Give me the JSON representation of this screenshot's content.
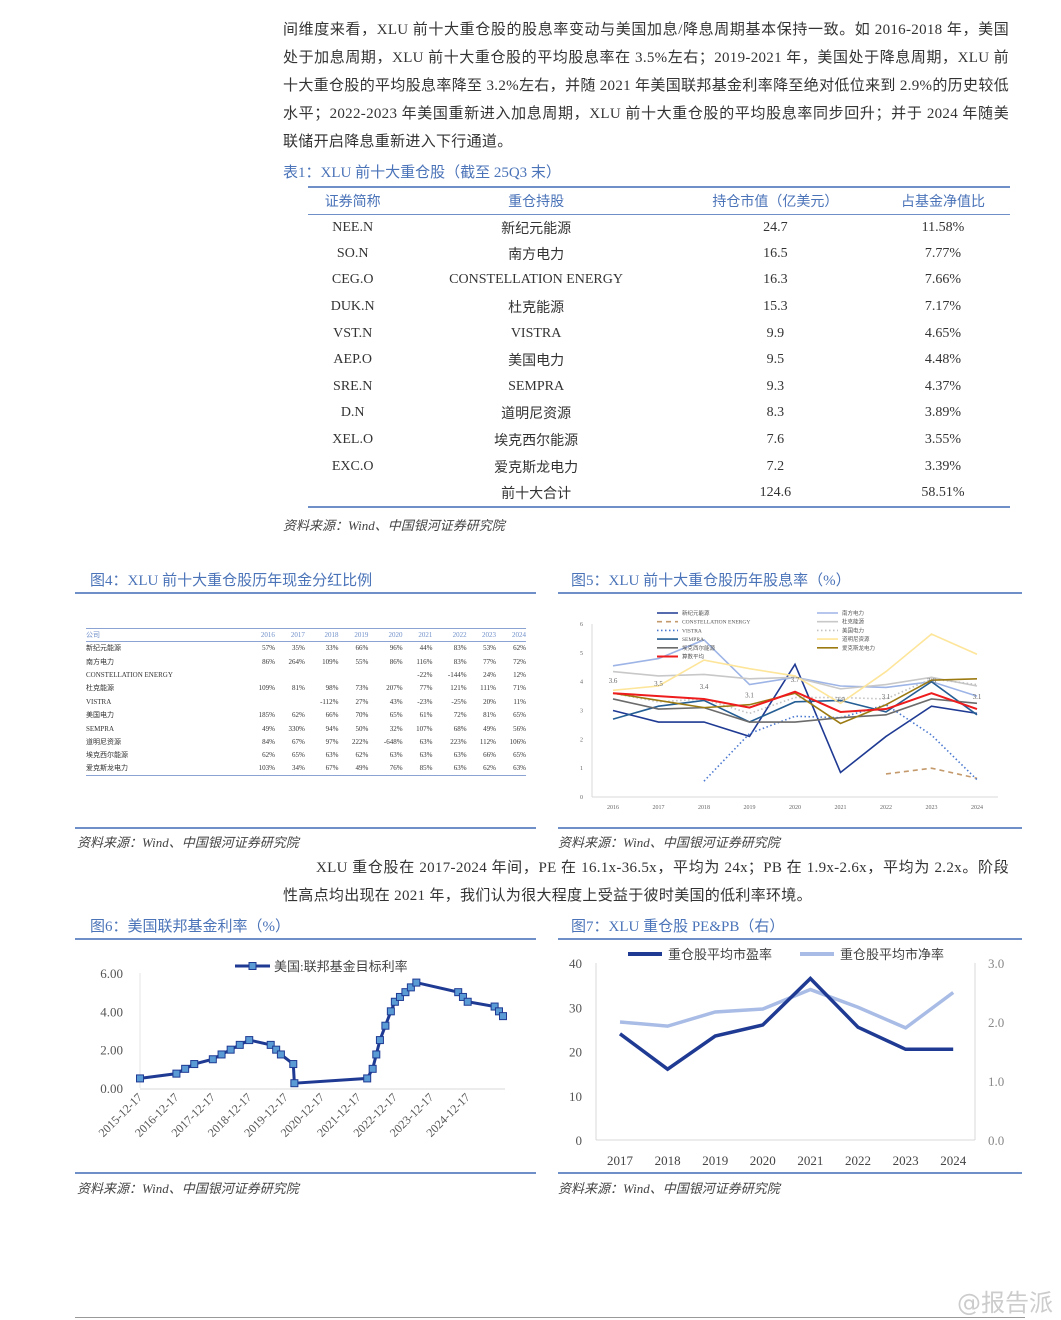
{
  "para1": "间维度来看，XLU 前十大重仓股的股息率变动与美国加息/降息周期基本保持一致。如 2016-2018 年，美国处于加息周期，XLU 前十大重仓股的平均股息率在 3.5%左右；2019-2021 年，美国处于降息周期，XLU 前十大重仓股的平均股息率降至 3.2%左右，并随 2021 年美国联邦基金利率降至绝对低位来到 2.9%的历史较低水平；2022-2023 年美国重新进入加息周期，XLU 前十大重仓股的平均股息率同步回升；并于 2024 年随美联储开启降息重新进入下行通道。",
  "table1": {
    "caption": "表1：XLU 前十大重仓股（截至 25Q3 末）",
    "headers": [
      "证券简称",
      "重仓持股",
      "持仓市值（亿美元）",
      "占基金净值比"
    ],
    "rows": [
      [
        "NEE.N",
        "新纪元能源",
        "24.7",
        "11.58%"
      ],
      [
        "SO.N",
        "南方电力",
        "16.5",
        "7.77%"
      ],
      [
        "CEG.O",
        "CONSTELLATION ENERGY",
        "16.3",
        "7.66%"
      ],
      [
        "DUK.N",
        "杜克能源",
        "15.3",
        "7.17%"
      ],
      [
        "VST.N",
        "VISTRA",
        "9.9",
        "4.65%"
      ],
      [
        "AEP.O",
        "美国电力",
        "9.5",
        "4.48%"
      ],
      [
        "SRE.N",
        "SEMPRA",
        "9.3",
        "4.37%"
      ],
      [
        "D.N",
        "道明尼资源",
        "8.3",
        "3.89%"
      ],
      [
        "XEL.O",
        "埃克西尔能源",
        "7.6",
        "3.55%"
      ],
      [
        "EXC.O",
        "爱克斯龙电力",
        "7.2",
        "3.39%"
      ],
      [
        "",
        "前十大合计",
        "124.6",
        "58.51%"
      ]
    ],
    "source": "资料来源：Wind、中国银河证券研究院"
  },
  "fig4": {
    "title": "图4：XLU 前十大重仓股历年现金分红比例",
    "headers": [
      "公司",
      "2016",
      "2017",
      "2018",
      "2019",
      "2020",
      "2021",
      "2022",
      "2023",
      "2024"
    ],
    "rows": [
      [
        "新纪元能源",
        "57%",
        "35%",
        "33%",
        "66%",
        "96%",
        "44%",
        "83%",
        "53%",
        "62%"
      ],
      [
        "南方电力",
        "86%",
        "264%",
        "109%",
        "55%",
        "86%",
        "116%",
        "83%",
        "77%",
        "72%"
      ],
      [
        "CONSTELLATION ENERGY",
        "",
        "",
        "",
        "",
        "",
        "-22%",
        "-144%",
        "24%",
        "12%"
      ],
      [
        "杜克能源",
        "109%",
        "81%",
        "98%",
        "73%",
        "207%",
        "77%",
        "121%",
        "111%",
        "71%"
      ],
      [
        "VISTRA",
        "",
        "",
        "-112%",
        "27%",
        "43%",
        "-23%",
        "-25%",
        "20%",
        "11%"
      ],
      [
        "美国电力",
        "185%",
        "62%",
        "66%",
        "70%",
        "65%",
        "61%",
        "72%",
        "81%",
        "65%"
      ],
      [
        "SEMPRA",
        "49%",
        "330%",
        "94%",
        "50%",
        "32%",
        "107%",
        "68%",
        "49%",
        "56%"
      ],
      [
        "道明尼资源",
        "84%",
        "67%",
        "97%",
        "222%",
        "-648%",
        "63%",
        "223%",
        "112%",
        "106%"
      ],
      [
        "埃克西尔能源",
        "62%",
        "65%",
        "63%",
        "62%",
        "63%",
        "63%",
        "63%",
        "66%",
        "65%"
      ],
      [
        "爱克斯龙电力",
        "103%",
        "34%",
        "67%",
        "49%",
        "76%",
        "85%",
        "63%",
        "62%",
        "63%"
      ]
    ],
    "source": "资料来源：Wind、中国银河证券研究院"
  },
  "fig5": {
    "title": "图5：XLU 前十大重仓股历年股息率（%）",
    "source": "资料来源：Wind、中国银河证券研究院"
  },
  "para2": "XLU 重仓股在 2017-2024 年间，PE 在 16.1x-36.5x，平均为 24x；PB 在 1.9x-2.6x，平均为 2.2x。阶段性高点均出现在 2021 年，我们认为很大程度上受益于彼时美国的低利率环境。",
  "fig6": {
    "title": "图6：美国联邦基金利率（%）",
    "source": "资料来源：Wind、中国银河证券研究院"
  },
  "fig7": {
    "title": "图7：XLU 重仓股 PE&PB（右）",
    "source": "资料来源：Wind、中国银河证券研究院"
  },
  "watermark": "@报告派",
  "chart_data": [
    {
      "type": "line",
      "title": "图5：XLU 前十大重仓股历年股息率（%）",
      "x": [
        "2016",
        "2017",
        "2018",
        "2019",
        "2020",
        "2021",
        "2022",
        "2023",
        "2024"
      ],
      "ylim": [
        0,
        6
      ],
      "yticks": [
        "0",
        "1",
        "2",
        "3",
        "4",
        "5",
        "6"
      ],
      "series": [
        {
          "name": "新纪元能源",
          "color": "#1f3a93",
          "dash": "",
          "values": [
            3.0,
            2.6,
            2.6,
            2.1,
            4.6,
            0.85,
            2.1,
            3.15,
            2.9
          ]
        },
        {
          "name": "南方电力",
          "color": "#9db4e6",
          "dash": "",
          "values": [
            4.55,
            4.8,
            5.45,
            3.9,
            4.15,
            3.85,
            3.8,
            4.0,
            3.5
          ]
        },
        {
          "name": "CONSTELLATION ENERGY",
          "color": "#c49a6c",
          "dash": "5,4",
          "values": [
            null,
            null,
            null,
            null,
            null,
            null,
            0.8,
            1.0,
            0.65
          ]
        },
        {
          "name": "杜克能源",
          "color": "#c8c8c8",
          "dash": "",
          "values": [
            4.35,
            4.2,
            4.25,
            4.1,
            4.15,
            3.75,
            3.9,
            4.15,
            3.85
          ]
        },
        {
          "name": "VISTRA",
          "color": "#4a78d0",
          "dash": "1.5,2.5",
          "values": [
            null,
            null,
            0.55,
            2.2,
            2.8,
            2.75,
            3.2,
            2.15,
            0.6
          ]
        },
        {
          "name": "美国电力",
          "color": "#c0c0c0",
          "dash": "1.5,2.5",
          "values": [
            3.6,
            3.3,
            3.4,
            2.9,
            3.45,
            3.45,
            3.4,
            4.1,
            3.9
          ]
        },
        {
          "name": "SEMPRA",
          "color": "#245e94",
          "dash": "",
          "values": [
            2.7,
            3.15,
            3.35,
            2.6,
            3.3,
            3.35,
            2.95,
            4.0,
            2.85
          ]
        },
        {
          "name": "道明尼资源",
          "color": "#fde59a",
          "dash": "",
          "values": [
            3.7,
            3.85,
            4.75,
            4.45,
            4.2,
            3.25,
            4.35,
            5.65,
            4.95
          ]
        },
        {
          "name": "埃克西尔能源",
          "color": "#6b6b6b",
          "dash": "",
          "values": [
            3.4,
            3.05,
            3.1,
            2.6,
            2.6,
            2.75,
            2.85,
            3.4,
            3.25
          ]
        },
        {
          "name": "爱克斯龙电力",
          "color": "#9c7a12",
          "dash": "",
          "values": [
            3.6,
            3.35,
            3.1,
            3.2,
            3.6,
            2.55,
            3.2,
            4.05,
            4.1
          ]
        },
        {
          "name": "算数平均",
          "color": "#ee1c1c",
          "dash": "",
          "values": [
            3.6,
            3.5,
            3.4,
            3.1,
            3.65,
            2.95,
            3.05,
            3.6,
            3.05
          ],
          "labels": [
            "3.6",
            "3.5",
            "3.4",
            "3.1",
            "3.7",
            "2.9",
            "3.1",
            "3.6",
            "3.1"
          ]
        }
      ]
    },
    {
      "type": "line",
      "title": "图6：美国联邦基金利率（%）",
      "legend": "美国:联邦基金目标利率",
      "ylim": [
        0,
        6
      ],
      "yticks": [
        "0.00",
        "2.00",
        "4.00",
        "6.00"
      ],
      "xticks": [
        "2015-12-17",
        "2016-12-17",
        "2017-12-17",
        "2018-12-17",
        "2019-12-17",
        "2020-12-17",
        "2021-12-17",
        "2022-12-17",
        "2023-12-17",
        "2024-12-17"
      ],
      "points": [
        [
          2015.96,
          0.5
        ],
        [
          2016.96,
          0.75
        ],
        [
          2017.2,
          1.0
        ],
        [
          2017.45,
          1.25
        ],
        [
          2017.96,
          1.5
        ],
        [
          2018.2,
          1.75
        ],
        [
          2018.45,
          2.0
        ],
        [
          2018.7,
          2.25
        ],
        [
          2018.96,
          2.5
        ],
        [
          2019.55,
          2.25
        ],
        [
          2019.7,
          2.0
        ],
        [
          2019.83,
          1.75
        ],
        [
          2020.17,
          1.25
        ],
        [
          2020.2,
          0.25
        ],
        [
          2022.2,
          0.5
        ],
        [
          2022.35,
          1.0
        ],
        [
          2022.45,
          1.75
        ],
        [
          2022.55,
          2.5
        ],
        [
          2022.7,
          3.25
        ],
        [
          2022.85,
          4.0
        ],
        [
          2022.96,
          4.5
        ],
        [
          2023.1,
          4.75
        ],
        [
          2023.25,
          5.0
        ],
        [
          2023.4,
          5.25
        ],
        [
          2023.55,
          5.5
        ],
        [
          2024.7,
          5.0
        ],
        [
          2024.83,
          4.75
        ],
        [
          2024.96,
          4.5
        ],
        [
          2025.7,
          4.25
        ],
        [
          2025.82,
          4.0
        ],
        [
          2025.93,
          3.75
        ]
      ]
    },
    {
      "type": "line",
      "title": "图7：XLU 重仓股 PE&PB（右）",
      "x": [
        "2017",
        "2018",
        "2019",
        "2020",
        "2021",
        "2022",
        "2023",
        "2024"
      ],
      "ylim_left": [
        0,
        40
      ],
      "ylim_right": [
        0,
        3
      ],
      "yticks_left": [
        "0",
        "10",
        "20",
        "30",
        "40"
      ],
      "yticks_right": [
        "0.0",
        "1.0",
        "2.0",
        "3.0"
      ],
      "series": [
        {
          "name": "重仓股平均市盈率",
          "axis": "left",
          "color": "#1f3a93",
          "values": [
            24,
            16,
            23.5,
            26,
            36.5,
            25.5,
            20.5,
            20.5
          ]
        },
        {
          "name": "重仓股平均市净率",
          "axis": "right",
          "color": "#a9bce6",
          "values": [
            2.0,
            1.93,
            2.17,
            2.22,
            2.55,
            2.25,
            1.9,
            2.5
          ]
        }
      ]
    }
  ]
}
